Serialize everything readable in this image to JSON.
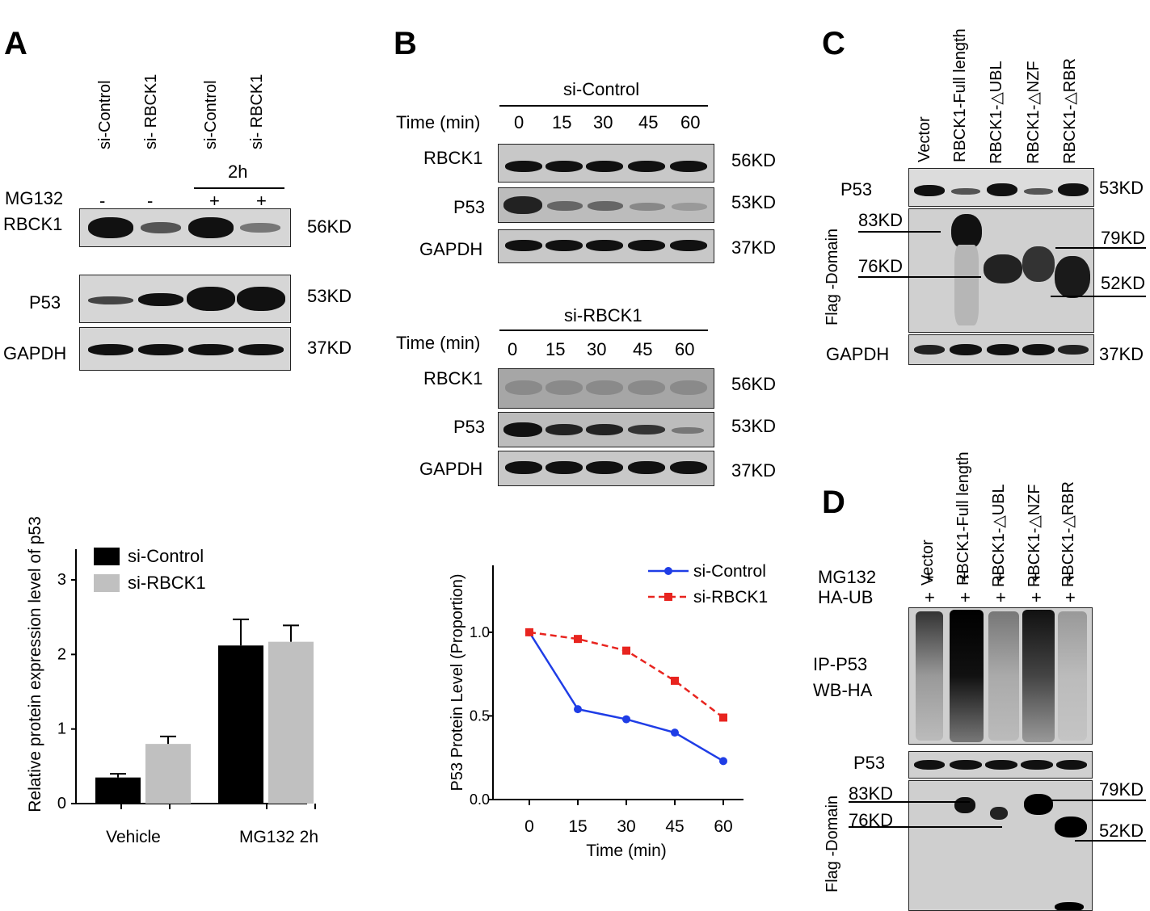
{
  "panels": {
    "a": "A",
    "b": "B",
    "c": "C",
    "d": "D"
  },
  "panel_a": {
    "lanes": [
      "si-Control",
      "si- RBCK1",
      "si-Control",
      "si- RBCK1"
    ],
    "time": "2h",
    "mg132_label": "MG132",
    "mg132": [
      "-",
      "-",
      "+",
      "+"
    ],
    "rows": [
      {
        "name": "RBCK1",
        "kd": "56KD"
      },
      {
        "name": "P53",
        "kd": "53KD"
      },
      {
        "name": "GAPDH",
        "kd": "37KD"
      }
    ]
  },
  "panel_b": {
    "top": {
      "group": "si-Control",
      "time_label": "Time (min)",
      "times": [
        "0",
        "15",
        "30",
        "45",
        "60"
      ],
      "rows": [
        {
          "name": "RBCK1",
          "kd": "56KD"
        },
        {
          "name": "P53",
          "kd": "53KD"
        },
        {
          "name": "GAPDH",
          "kd": "37KD"
        }
      ]
    },
    "bottom": {
      "group": "si-RBCK1",
      "time_label": "Time (min)",
      "times": [
        "0",
        "15",
        "30",
        "45",
        "60"
      ],
      "rows": [
        {
          "name": "RBCK1",
          "kd": "56KD"
        },
        {
          "name": "P53",
          "kd": "53KD"
        },
        {
          "name": "GAPDH",
          "kd": "37KD"
        }
      ]
    }
  },
  "panel_c": {
    "lanes": [
      "Vector",
      "RBCK1-Full length",
      "RBCK1-△UBL",
      "RBCK1-△NZF",
      "RBCK1-△RBR"
    ],
    "p53": {
      "name": "P53",
      "kd": "53KD"
    },
    "flag_label": "Flag -Domain",
    "markers_left": [
      "83KD",
      "76KD"
    ],
    "markers_right": [
      "79KD",
      "52KD"
    ],
    "gapdh": {
      "name": "GAPDH",
      "kd": "37KD"
    }
  },
  "panel_d": {
    "lanes": [
      "Vector",
      "RBCK1-Full length",
      "RBCK1-△UBL",
      "RBCK1-△NZF",
      "RBCK1-△RBR"
    ],
    "mg132_label": "MG132",
    "haub_label": "HA-UB",
    "plus": [
      "+",
      "+",
      "+",
      "+",
      "+"
    ],
    "ip_label": "IP-P53",
    "wb_label": "WB-HA",
    "p53_label": "P53",
    "flag_label": "Flag -Domain",
    "markers_left": [
      "83KD",
      "76KD"
    ],
    "markers_right": [
      "79KD",
      "52KD"
    ]
  },
  "chart_data": [
    {
      "type": "bar",
      "ylabel": "Relative protein expression level of p53",
      "xlabel": "",
      "categories": [
        "Vehicle",
        "MG132 2h"
      ],
      "series": [
        {
          "name": "si-Control",
          "values": [
            0.35,
            2.12
          ],
          "errors": [
            0.05,
            0.35
          ],
          "color": "#000000"
        },
        {
          "name": "si-RBCK1",
          "values": [
            0.8,
            2.17
          ],
          "errors": [
            0.1,
            0.22
          ],
          "color": "#c0c0c0"
        }
      ],
      "ylim": [
        0,
        3
      ],
      "yticks": [
        "0",
        "1",
        "2",
        "3"
      ],
      "legend": "top-left"
    },
    {
      "type": "line",
      "ylabel": "P53 Protein Level (Proportion)",
      "xlabel": "Time (min)",
      "x": [
        0,
        15,
        30,
        45,
        60
      ],
      "series": [
        {
          "name": "si-Control",
          "values": [
            1.0,
            0.54,
            0.48,
            0.4,
            0.23
          ],
          "color": "#1f3de6"
        },
        {
          "name": "si-RBCK1",
          "values": [
            1.0,
            0.96,
            0.89,
            0.71,
            0.49
          ],
          "color": "#e8241f"
        }
      ],
      "xticks": [
        "0",
        "15",
        "30",
        "45",
        "60"
      ],
      "yticks": [
        "0.0",
        "0.5",
        "1.0"
      ],
      "ylim": [
        0,
        1.4
      ],
      "legend": "top-right"
    }
  ]
}
